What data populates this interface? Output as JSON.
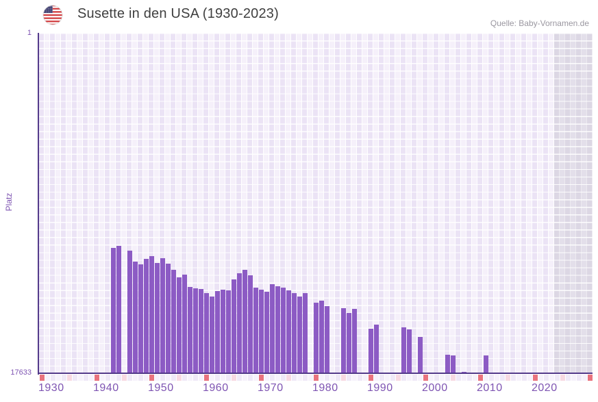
{
  "header": {
    "title": "Susette in den USA (1930-2023)",
    "source": "Quelle: Baby-Vornamen.de",
    "flag_icon": "us-flag"
  },
  "chart_data": {
    "type": "bar",
    "title": "Susette in den USA (1930-2023)",
    "xlabel": "",
    "ylabel": "Platz",
    "y_axis": {
      "top_label": "1",
      "bottom_label": "17633",
      "min": 1,
      "max": 17633,
      "inverted": true
    },
    "x_axis": {
      "range": [
        1930,
        2031
      ],
      "ticks": [
        1930,
        1940,
        1950,
        1960,
        1970,
        1980,
        1990,
        2000,
        2010,
        2020
      ]
    },
    "data_range": [
      1930,
      2023
    ],
    "future_region_start": 2024,
    "timeline_markers": {
      "range": [
        1930,
        2030
      ],
      "major_step": 10,
      "minor_step": 5
    },
    "legend": "none",
    "grid": "on",
    "points": [
      [
        1943,
        11130
      ],
      [
        1944,
        11045
      ],
      [
        1946,
        11270
      ],
      [
        1947,
        11840
      ],
      [
        1948,
        11990
      ],
      [
        1949,
        11720
      ],
      [
        1950,
        11560
      ],
      [
        1951,
        11910
      ],
      [
        1952,
        11680
      ],
      [
        1953,
        11960
      ],
      [
        1954,
        12270
      ],
      [
        1955,
        12670
      ],
      [
        1956,
        12530
      ],
      [
        1957,
        13160
      ],
      [
        1958,
        13240
      ],
      [
        1959,
        13280
      ],
      [
        1960,
        13470
      ],
      [
        1961,
        13660
      ],
      [
        1962,
        13380
      ],
      [
        1963,
        13310
      ],
      [
        1964,
        13330
      ],
      [
        1965,
        12780
      ],
      [
        1966,
        12470
      ],
      [
        1967,
        12270
      ],
      [
        1968,
        12550
      ],
      [
        1969,
        13210
      ],
      [
        1970,
        13310
      ],
      [
        1971,
        13400
      ],
      [
        1972,
        13020
      ],
      [
        1973,
        13140
      ],
      [
        1974,
        13210
      ],
      [
        1975,
        13330
      ],
      [
        1976,
        13470
      ],
      [
        1977,
        13660
      ],
      [
        1978,
        13480
      ],
      [
        1980,
        13970
      ],
      [
        1981,
        13870
      ],
      [
        1982,
        14160
      ],
      [
        1985,
        14270
      ],
      [
        1986,
        14510
      ],
      [
        1987,
        14300
      ],
      [
        1990,
        15330
      ],
      [
        1991,
        15115
      ],
      [
        1996,
        15250
      ],
      [
        1997,
        15360
      ],
      [
        1999,
        15770
      ],
      [
        2004,
        16690
      ],
      [
        2005,
        16720
      ],
      [
        2007,
        17550
      ],
      [
        2011,
        16720
      ]
    ],
    "colors": {
      "bar": "#8c5bc4",
      "axis_line": "#533a8a",
      "tick_label": "#7e54b2",
      "title_text": "#3f3f3f",
      "source_text": "#9a97a0",
      "bg_col_dark": "#ebe3f5",
      "bg_col_light": "#f5f0fa",
      "grid_line": "#ffffff",
      "future_col_dark": "#dcd7e4",
      "future_col_light": "#e3dfea",
      "future_grid_line": "#edebf1",
      "marker_major": "#e9737e",
      "marker_minor": "#f7d9e2",
      "strip_cell_dark": "#efe9f7",
      "strip_cell_light": "#f6f2fb",
      "flag_red": "#d23f42",
      "flag_blue": "#3c3b6e"
    }
  }
}
